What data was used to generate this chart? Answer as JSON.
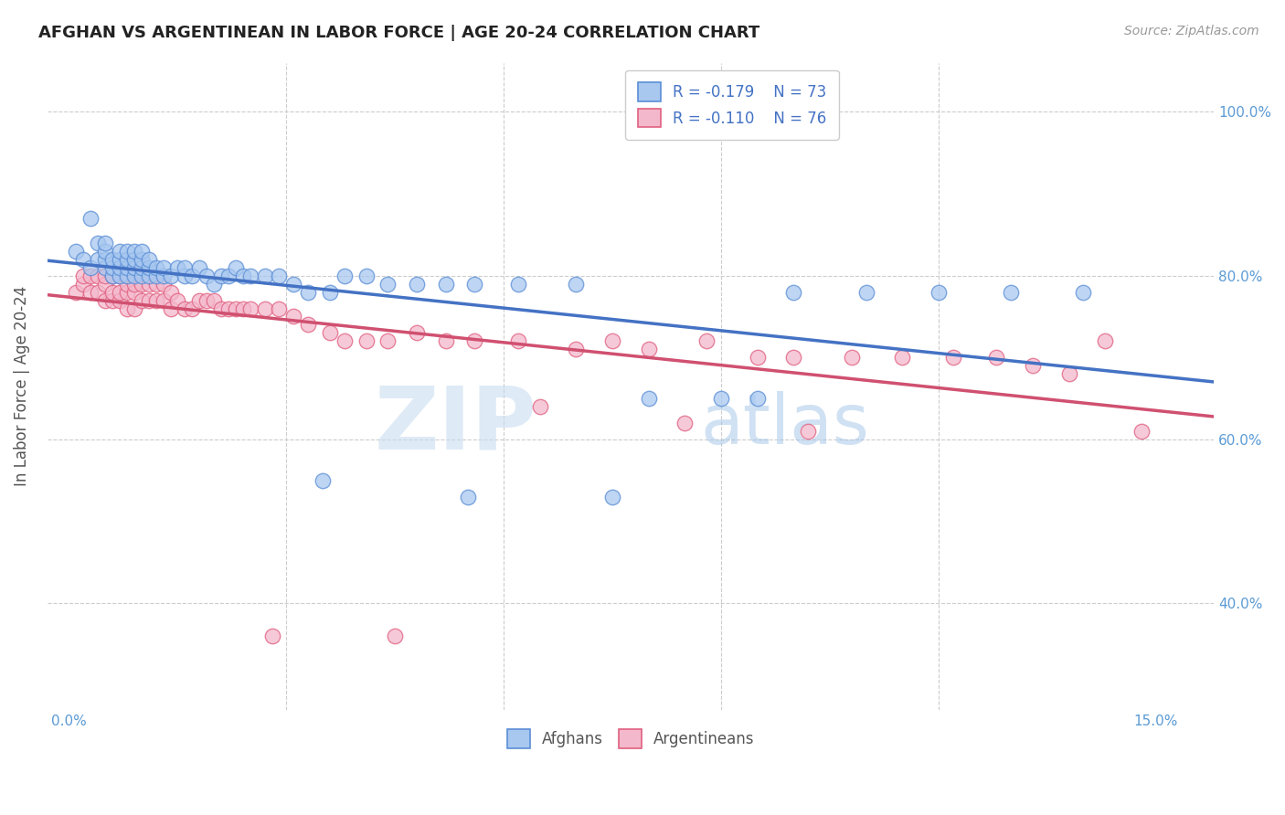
{
  "title": "AFGHAN VS ARGENTINEAN IN LABOR FORCE | AGE 20-24 CORRELATION CHART",
  "source": "Source: ZipAtlas.com",
  "ylabel": "In Labor Force | Age 20-24",
  "xlim": [
    -0.003,
    0.158
  ],
  "ylim": [
    0.27,
    1.06
  ],
  "afghan_color": "#a8c8f0",
  "argent_color": "#f4b8cc",
  "afghan_edge_color": "#5b8ed6",
  "argent_edge_color": "#e06080",
  "afghan_line_color": "#4472c4",
  "argent_line_color": "#d05070",
  "watermark_zip": "ZIP",
  "watermark_atlas": "atlas",
  "background_color": "#ffffff",
  "grid_color": "#cccccc",
  "title_color": "#222222",
  "axis_label_color": "#5b9bd5",
  "legend_r_color": "#4472c4",
  "legend_text_color": "#333333",
  "afghan_scatter_x": [
    0.001,
    0.002,
    0.003,
    0.003,
    0.004,
    0.004,
    0.005,
    0.005,
    0.005,
    0.005,
    0.006,
    0.006,
    0.006,
    0.007,
    0.007,
    0.007,
    0.007,
    0.008,
    0.008,
    0.008,
    0.008,
    0.009,
    0.009,
    0.009,
    0.009,
    0.01,
    0.01,
    0.01,
    0.01,
    0.011,
    0.011,
    0.011,
    0.012,
    0.012,
    0.013,
    0.013,
    0.014,
    0.015,
    0.016,
    0.016,
    0.017,
    0.018,
    0.019,
    0.02,
    0.021,
    0.022,
    0.023,
    0.024,
    0.025,
    0.027,
    0.029,
    0.031,
    0.033,
    0.036,
    0.038,
    0.041,
    0.044,
    0.048,
    0.052,
    0.056,
    0.062,
    0.07,
    0.08,
    0.09,
    0.1,
    0.11,
    0.12,
    0.13,
    0.14,
    0.095,
    0.075,
    0.055,
    0.035
  ],
  "afghan_scatter_y": [
    0.83,
    0.82,
    0.81,
    0.87,
    0.82,
    0.84,
    0.81,
    0.82,
    0.83,
    0.84,
    0.8,
    0.81,
    0.82,
    0.8,
    0.81,
    0.82,
    0.83,
    0.8,
    0.81,
    0.82,
    0.83,
    0.8,
    0.81,
    0.82,
    0.83,
    0.8,
    0.81,
    0.82,
    0.83,
    0.8,
    0.81,
    0.82,
    0.8,
    0.81,
    0.8,
    0.81,
    0.8,
    0.81,
    0.8,
    0.81,
    0.8,
    0.81,
    0.8,
    0.79,
    0.8,
    0.8,
    0.81,
    0.8,
    0.8,
    0.8,
    0.8,
    0.79,
    0.78,
    0.78,
    0.8,
    0.8,
    0.79,
    0.79,
    0.79,
    0.79,
    0.79,
    0.79,
    0.65,
    0.65,
    0.78,
    0.78,
    0.78,
    0.78,
    0.78,
    0.65,
    0.53,
    0.53,
    0.55
  ],
  "argent_scatter_x": [
    0.001,
    0.002,
    0.002,
    0.003,
    0.003,
    0.004,
    0.004,
    0.005,
    0.005,
    0.005,
    0.006,
    0.006,
    0.006,
    0.007,
    0.007,
    0.007,
    0.008,
    0.008,
    0.008,
    0.008,
    0.009,
    0.009,
    0.009,
    0.009,
    0.01,
    0.01,
    0.011,
    0.011,
    0.012,
    0.012,
    0.013,
    0.013,
    0.014,
    0.014,
    0.015,
    0.016,
    0.017,
    0.018,
    0.019,
    0.02,
    0.021,
    0.022,
    0.023,
    0.024,
    0.025,
    0.027,
    0.029,
    0.031,
    0.033,
    0.036,
    0.038,
    0.041,
    0.044,
    0.048,
    0.052,
    0.056,
    0.062,
    0.07,
    0.075,
    0.08,
    0.088,
    0.095,
    0.1,
    0.108,
    0.115,
    0.122,
    0.128,
    0.133,
    0.138,
    0.143,
    0.148,
    0.102,
    0.085,
    0.065,
    0.045,
    0.028
  ],
  "argent_scatter_y": [
    0.78,
    0.79,
    0.8,
    0.78,
    0.8,
    0.78,
    0.8,
    0.77,
    0.79,
    0.8,
    0.77,
    0.78,
    0.8,
    0.77,
    0.78,
    0.8,
    0.76,
    0.78,
    0.79,
    0.8,
    0.76,
    0.78,
    0.79,
    0.81,
    0.77,
    0.79,
    0.77,
    0.79,
    0.77,
    0.79,
    0.77,
    0.79,
    0.76,
    0.78,
    0.77,
    0.76,
    0.76,
    0.77,
    0.77,
    0.77,
    0.76,
    0.76,
    0.76,
    0.76,
    0.76,
    0.76,
    0.76,
    0.75,
    0.74,
    0.73,
    0.72,
    0.72,
    0.72,
    0.73,
    0.72,
    0.72,
    0.72,
    0.71,
    0.72,
    0.71,
    0.72,
    0.7,
    0.7,
    0.7,
    0.7,
    0.7,
    0.7,
    0.69,
    0.68,
    0.72,
    0.61,
    0.61,
    0.62,
    0.64,
    0.36,
    0.36
  ],
  "xtick_positions": [
    0.0,
    0.03,
    0.06,
    0.09,
    0.12,
    0.15
  ],
  "ytick_positions": [
    0.4,
    0.6,
    0.8,
    1.0
  ],
  "ytick_labels": [
    "40.0%",
    "60.0%",
    "80.0%",
    "100.0%"
  ]
}
